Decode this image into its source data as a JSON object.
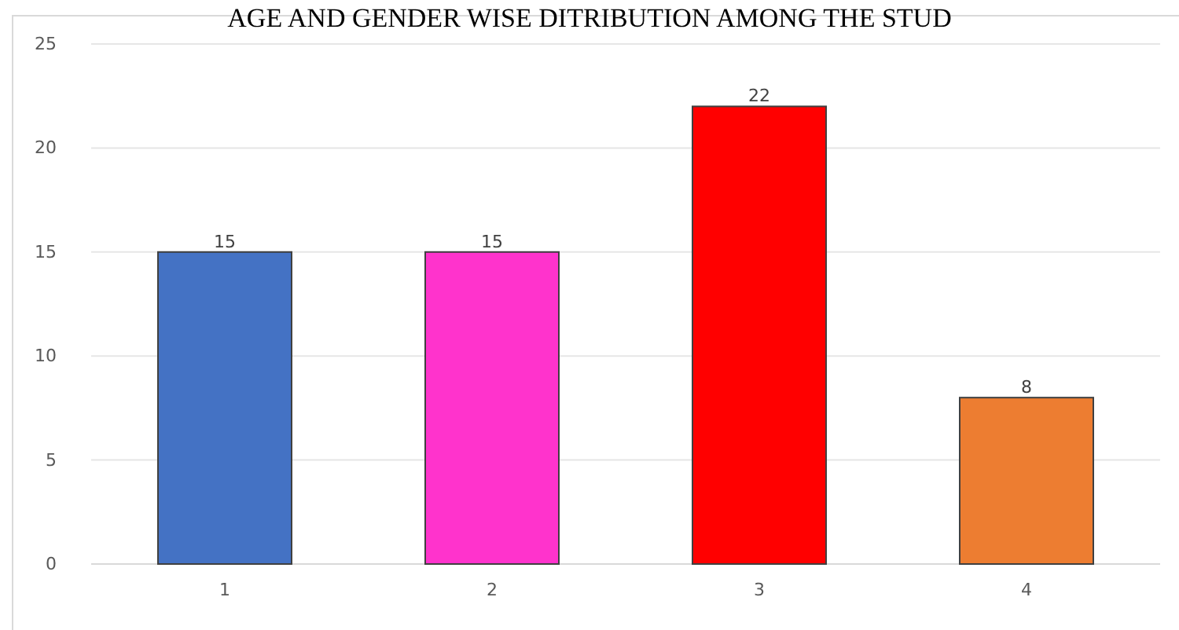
{
  "chart_data": {
    "type": "bar",
    "title": "AGE AND GENDER WISE DITRIBUTION AMONG THE STUD",
    "categories": [
      "1",
      "2",
      "3",
      "4"
    ],
    "values": [
      15,
      15,
      22,
      8
    ],
    "colors": [
      "#4472c4",
      "#ff33cc",
      "#ff0000",
      "#ed7d31"
    ],
    "ylim": [
      0,
      25
    ],
    "yticks": [
      0,
      5,
      10,
      15,
      20,
      25
    ],
    "grid": "y",
    "data_labels": true
  }
}
